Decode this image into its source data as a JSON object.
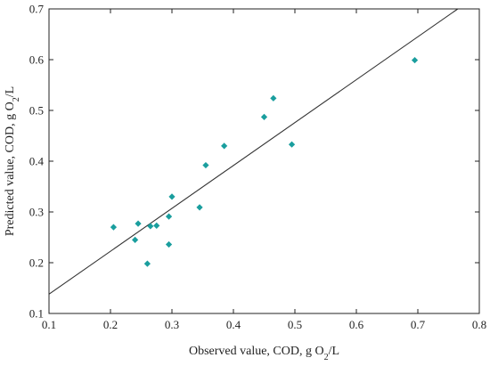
{
  "chart_data": {
    "type": "scatter",
    "title": "",
    "xlabel": {
      "main": "Observed value, COD, g O",
      "sub": "2",
      "tail": "/L"
    },
    "ylabel": {
      "main": "Predicted value, COD, g O",
      "sub": "2",
      "tail": "/L"
    },
    "xlim": [
      0.1,
      0.8
    ],
    "ylim": [
      0.1,
      0.7
    ],
    "x_ticks": [
      "0.1",
      "0.2",
      "0.3",
      "0.4",
      "0.5",
      "0.6",
      "0.7",
      "0.8"
    ],
    "y_ticks": [
      "0.1",
      "0.2",
      "0.3",
      "0.4",
      "0.5",
      "0.6",
      "0.7"
    ],
    "grid": false,
    "marker": "diamond",
    "marker_color": "#1a9e9e",
    "line_color": "#333333",
    "points": [
      {
        "x": 0.205,
        "y": 0.27
      },
      {
        "x": 0.24,
        "y": 0.245
      },
      {
        "x": 0.245,
        "y": 0.277
      },
      {
        "x": 0.26,
        "y": 0.198
      },
      {
        "x": 0.265,
        "y": 0.272
      },
      {
        "x": 0.275,
        "y": 0.273
      },
      {
        "x": 0.295,
        "y": 0.291
      },
      {
        "x": 0.295,
        "y": 0.236
      },
      {
        "x": 0.3,
        "y": 0.33
      },
      {
        "x": 0.345,
        "y": 0.309
      },
      {
        "x": 0.355,
        "y": 0.392
      },
      {
        "x": 0.385,
        "y": 0.43
      },
      {
        "x": 0.45,
        "y": 0.487
      },
      {
        "x": 0.465,
        "y": 0.524
      },
      {
        "x": 0.495,
        "y": 0.433
      },
      {
        "x": 0.695,
        "y": 0.599
      }
    ],
    "fit_line": {
      "x": [
        0.1,
        0.765
      ],
      "y": [
        0.138,
        0.7
      ]
    }
  }
}
